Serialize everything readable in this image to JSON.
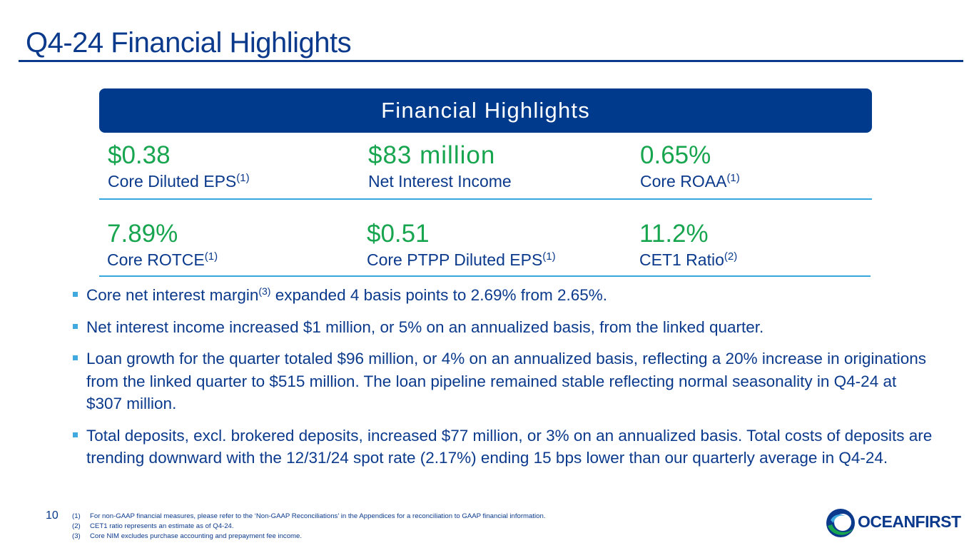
{
  "title": "Q4-24 Financial Highlights",
  "banner": "Financial Highlights",
  "metrics": [
    {
      "value": "$0.38",
      "label": "Core Diluted EPS",
      "sup": "(1)"
    },
    {
      "value": "$83 million",
      "label": "Net Interest Income",
      "sup": ""
    },
    {
      "value": "0.65%",
      "label": "Core ROAA",
      "sup": "(1)"
    },
    {
      "value": "7.89%",
      "label": "Core ROTCE",
      "sup": "(1)"
    },
    {
      "value": "$0.51",
      "label": "Core PTPP Diluted EPS",
      "sup": "(1)"
    },
    {
      "value": "11.2%",
      "label": "CET1 Ratio",
      "sup": "(2)"
    }
  ],
  "bullets": [
    {
      "pre": "Core net interest margin",
      "sup": "(3)",
      "post": " expanded 4 basis points to 2.69% from 2.65%."
    },
    {
      "pre": "Net interest income increased $1 million, or 5% on an annualized basis, from the linked quarter.",
      "sup": "",
      "post": ""
    },
    {
      "pre": "Loan growth for the quarter totaled $96 million, or 4% on an annualized basis, reflecting a 20% increase in originations from the linked quarter to $515 million. The loan pipeline remained stable reflecting normal seasonality in Q4-24 at $307 million.",
      "sup": "",
      "post": ""
    },
    {
      "pre": "Total deposits, excl. brokered deposits, increased $77 million, or 3% on an annualized basis. Total costs of deposits are trending downward with the 12/31/24 spot rate (2.17%) ending 15 bps lower than our quarterly average in Q4-24.",
      "sup": "",
      "post": ""
    }
  ],
  "page_number": "10",
  "footnotes": [
    {
      "num": "(1)",
      "text": "For non-GAAP financial measures, please refer to the ‘Non-GAAP Reconciliations’ in the Appendices for a reconciliation to GAAP financial information."
    },
    {
      "num": "(2)",
      "text": "CET1 ratio represents an estimate as of Q4-24."
    },
    {
      "num": "(3)",
      "text": "Core NIM excludes purchase accounting and prepayment fee income."
    }
  ],
  "logo_text": "OCEANFIRST",
  "colors": {
    "navy": "#0b3a8c",
    "banner": "#003a8c",
    "green": "#18a550",
    "light_blue": "#37a7df"
  }
}
